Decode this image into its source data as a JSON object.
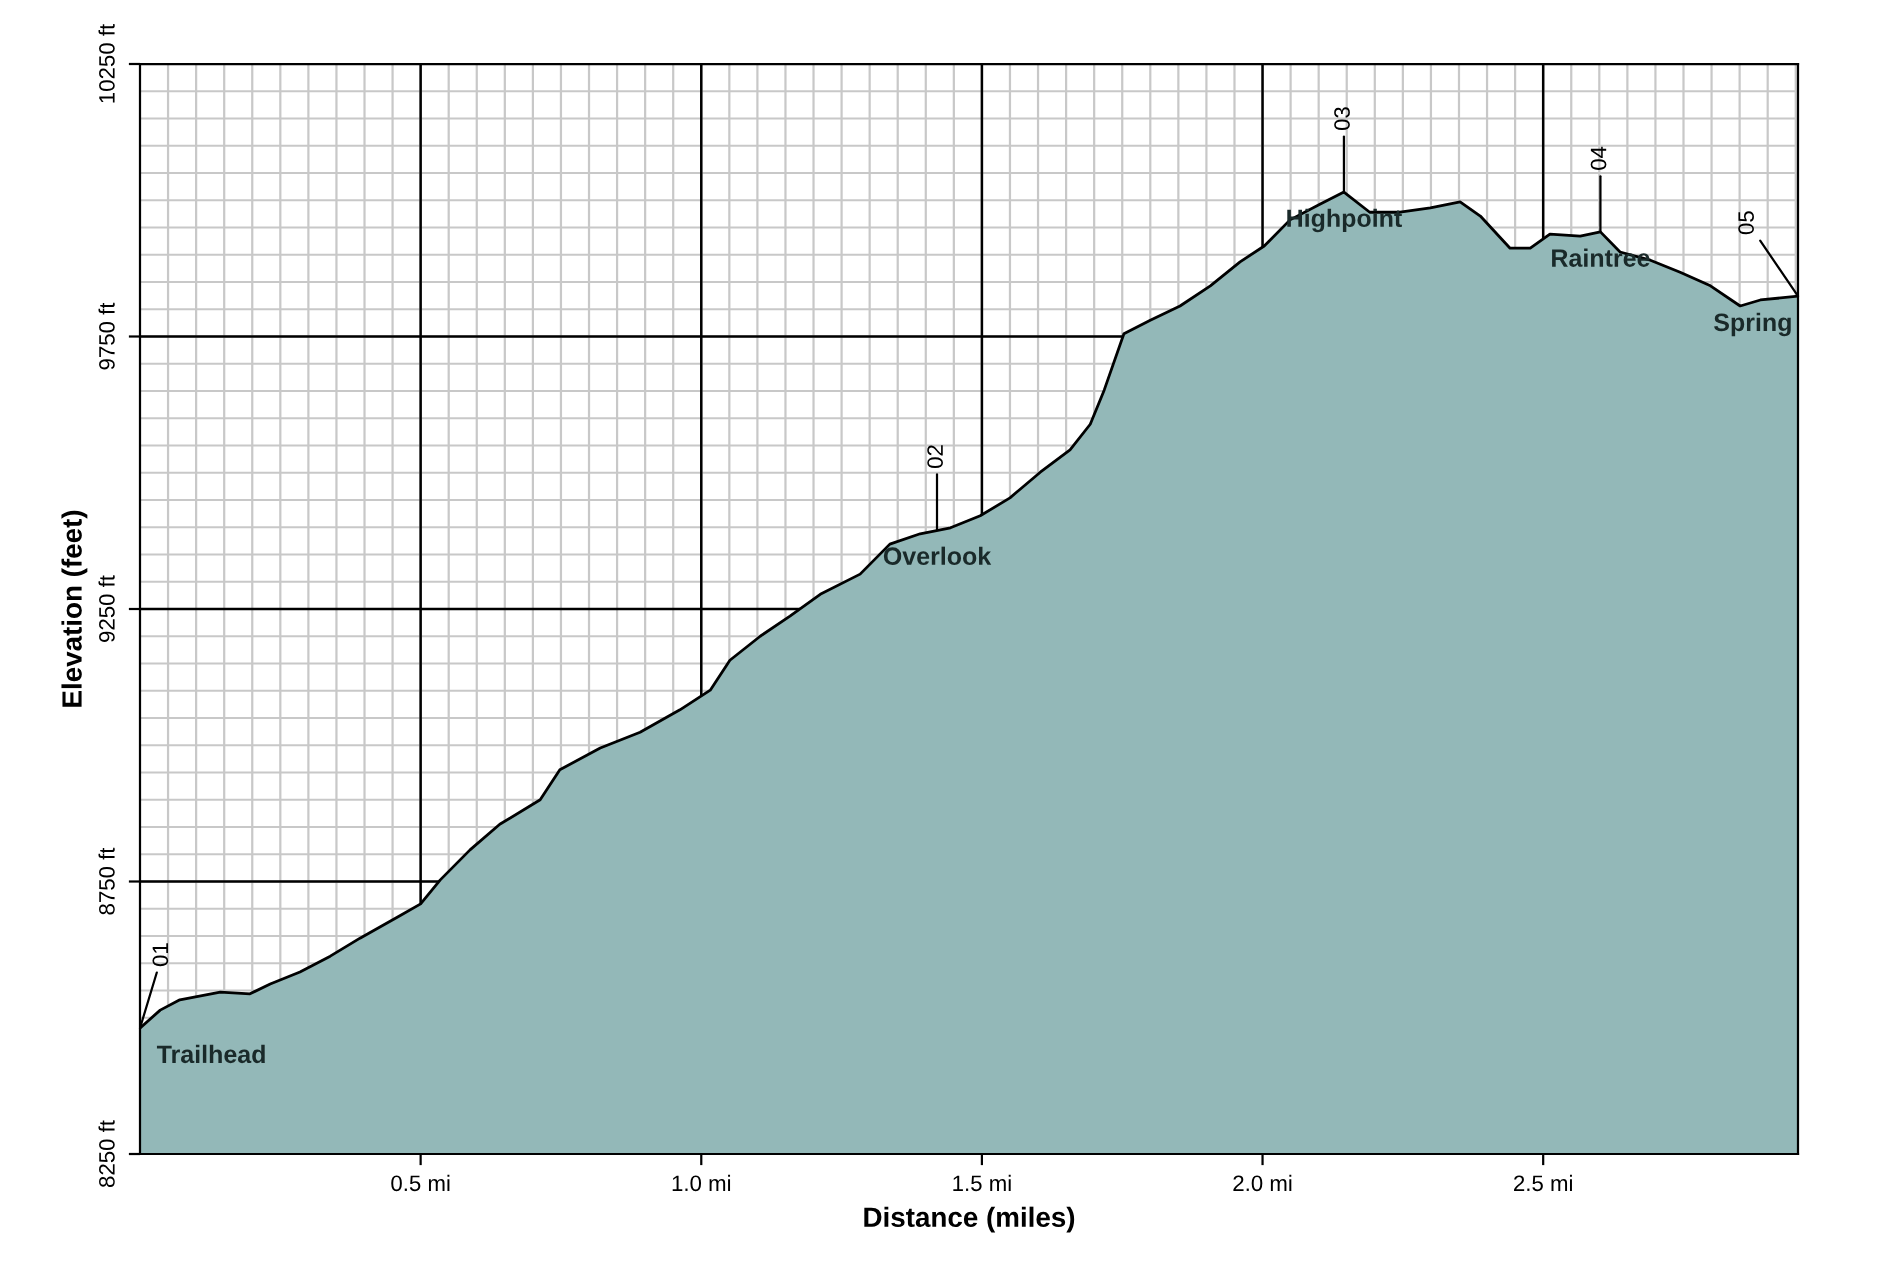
{
  "chart_data": {
    "type": "area",
    "xlabel": "Distance (miles)",
    "ylabel": "Elevation (feet)",
    "x": [
      0,
      0.036,
      0.071,
      0.143,
      0.196,
      0.232,
      0.285,
      0.339,
      0.392,
      0.463,
      0.5,
      0.535,
      0.588,
      0.641,
      0.713,
      0.748,
      0.82,
      0.891,
      0.962,
      1.016,
      1.051,
      1.105,
      1.158,
      1.212,
      1.283,
      1.336,
      1.39,
      1.444,
      1.497,
      1.55,
      1.604,
      1.657,
      1.693,
      1.718,
      1.753,
      1.8,
      1.853,
      1.907,
      1.96,
      2.003,
      2.049,
      2.103,
      2.145,
      2.191,
      2.245,
      2.299,
      2.352,
      2.388,
      2.441,
      2.477,
      2.512,
      2.566,
      2.602,
      2.637,
      2.691,
      2.744,
      2.798,
      2.851,
      2.887,
      2.954
    ],
    "series": [
      {
        "color": "#93b8b8",
        "values": [
          8481,
          8514,
          8533,
          8547,
          8544,
          8562,
          8584,
          8613,
          8646,
          8687,
          8709,
          8753,
          8808,
          8855,
          8900,
          8955,
          8995,
          9024,
          9065,
          9101,
          9156,
          9200,
          9237,
          9277,
          9314,
          9369,
          9388,
          9399,
          9421,
          9454,
          9501,
          9542,
          9589,
          9652,
          9755,
          9780,
          9806,
          9843,
          9887,
          9916,
          9964,
          9993,
          10015,
          9978,
          9978,
          9986,
          9997,
          9971,
          9912,
          9912,
          9938,
          9934,
          9942,
          9905,
          9890,
          9868,
          9843,
          9806,
          9817,
          9824
        ]
      }
    ],
    "xlim": [
      0,
      2.954
    ],
    "ylim": [
      8250,
      10250
    ],
    "xticks": [
      {
        "value": 0.5,
        "label": "0.5 mi"
      },
      {
        "value": 1.0,
        "label": "1.0 mi"
      },
      {
        "value": 1.5,
        "label": "1.5 mi"
      },
      {
        "value": 2.0,
        "label": "2.0 mi"
      },
      {
        "value": 2.5,
        "label": "2.5 mi"
      }
    ],
    "yticks": [
      {
        "value": 8250,
        "label": "8250 ft"
      },
      {
        "value": 8750,
        "label": "8750 ft"
      },
      {
        "value": 9250,
        "label": "9250 ft"
      },
      {
        "value": 9750,
        "label": "9750 ft"
      },
      {
        "value": 10250,
        "label": "10250 ft"
      }
    ],
    "grid": true,
    "annotations": [
      {
        "text": "01",
        "x": 0,
        "y": 8481
      },
      {
        "text": "Trailhead",
        "x": 0,
        "y": 8481
      },
      {
        "text": "02",
        "x": 1.42,
        "y": 9395
      },
      {
        "text": "Overlook",
        "x": 1.42,
        "y": 9395
      },
      {
        "text": "03",
        "x": 2.145,
        "y": 10015
      },
      {
        "text": "Highpoint",
        "x": 2.145,
        "y": 10015
      },
      {
        "text": "04",
        "x": 2.602,
        "y": 9942
      },
      {
        "text": "Raintree",
        "x": 2.602,
        "y": 9942
      },
      {
        "text": "05",
        "x": 2.954,
        "y": 9824
      },
      {
        "text": "Spring",
        "x": 2.954,
        "y": 9824
      }
    ]
  }
}
